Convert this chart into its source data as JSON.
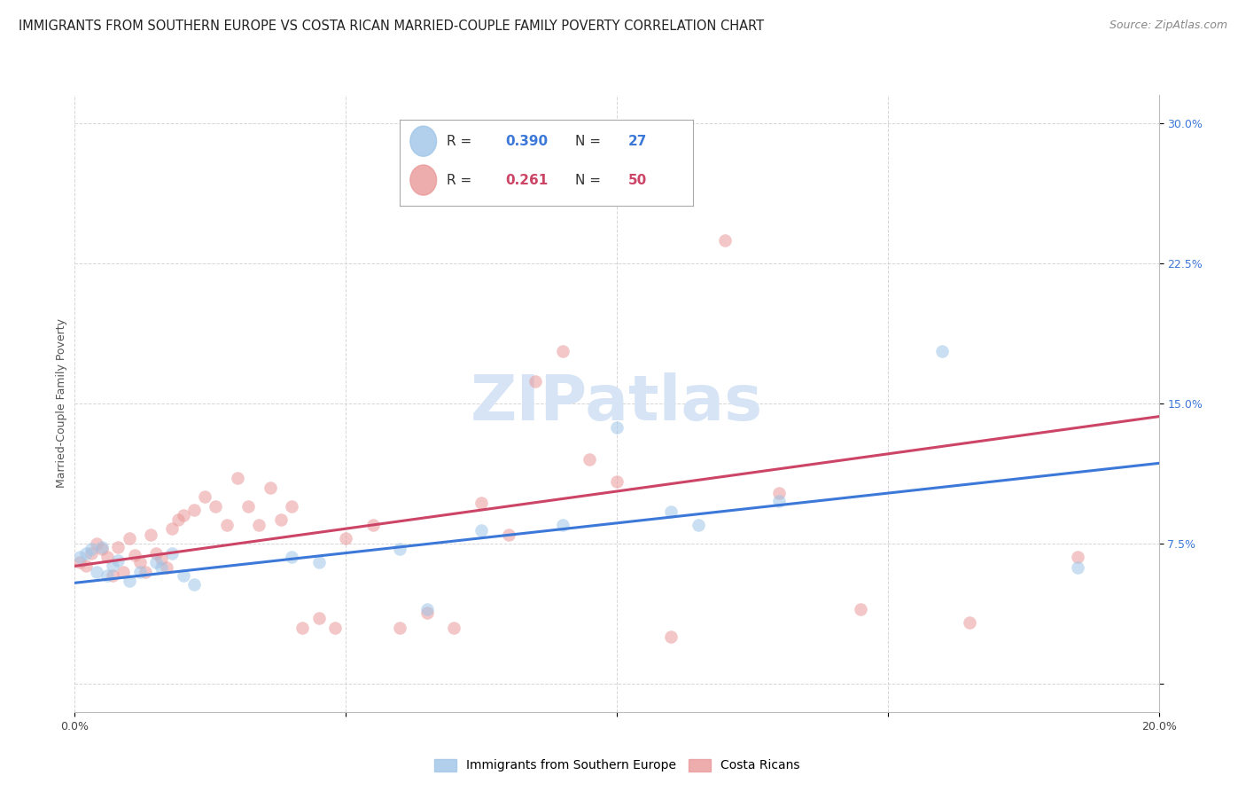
{
  "title": "IMMIGRANTS FROM SOUTHERN EUROPE VS COSTA RICAN MARRIED-COUPLE FAMILY POVERTY CORRELATION CHART",
  "source": "Source: ZipAtlas.com",
  "ylabel": "Married-Couple Family Poverty",
  "yticks": [
    0.0,
    0.075,
    0.15,
    0.225,
    0.3
  ],
  "ytick_labels": [
    "",
    "7.5%",
    "15.0%",
    "22.5%",
    "30.0%"
  ],
  "xlim": [
    0.0,
    0.2
  ],
  "ylim": [
    -0.015,
    0.315
  ],
  "watermark": "ZIPatlas",
  "legend_blue_R": "0.390",
  "legend_blue_N": "27",
  "legend_pink_R": "0.261",
  "legend_pink_N": "50",
  "legend_blue_label": "Immigrants from Southern Europe",
  "legend_pink_label": "Costa Ricans",
  "blue_scatter_x": [
    0.001,
    0.002,
    0.003,
    0.004,
    0.005,
    0.006,
    0.007,
    0.008,
    0.01,
    0.012,
    0.015,
    0.016,
    0.018,
    0.02,
    0.022,
    0.04,
    0.045,
    0.06,
    0.065,
    0.075,
    0.09,
    0.1,
    0.11,
    0.115,
    0.13,
    0.16,
    0.185
  ],
  "blue_scatter_y": [
    0.068,
    0.07,
    0.072,
    0.06,
    0.073,
    0.058,
    0.063,
    0.066,
    0.055,
    0.06,
    0.065,
    0.062,
    0.07,
    0.058,
    0.053,
    0.068,
    0.065,
    0.072,
    0.04,
    0.082,
    0.085,
    0.137,
    0.092,
    0.085,
    0.098,
    0.178,
    0.062
  ],
  "pink_scatter_x": [
    0.001,
    0.002,
    0.003,
    0.004,
    0.005,
    0.006,
    0.007,
    0.008,
    0.009,
    0.01,
    0.011,
    0.012,
    0.013,
    0.014,
    0.015,
    0.016,
    0.017,
    0.018,
    0.019,
    0.02,
    0.022,
    0.024,
    0.026,
    0.028,
    0.03,
    0.032,
    0.034,
    0.036,
    0.038,
    0.04,
    0.042,
    0.045,
    0.048,
    0.05,
    0.055,
    0.06,
    0.065,
    0.07,
    0.075,
    0.08,
    0.085,
    0.09,
    0.095,
    0.1,
    0.11,
    0.12,
    0.13,
    0.145,
    0.165,
    0.185
  ],
  "pink_scatter_y": [
    0.065,
    0.063,
    0.07,
    0.075,
    0.072,
    0.068,
    0.058,
    0.073,
    0.06,
    0.078,
    0.069,
    0.065,
    0.06,
    0.08,
    0.07,
    0.067,
    0.062,
    0.083,
    0.088,
    0.09,
    0.093,
    0.1,
    0.095,
    0.085,
    0.11,
    0.095,
    0.085,
    0.105,
    0.088,
    0.095,
    0.03,
    0.035,
    0.03,
    0.078,
    0.085,
    0.03,
    0.038,
    0.03,
    0.097,
    0.08,
    0.162,
    0.178,
    0.12,
    0.108,
    0.025,
    0.237,
    0.102,
    0.04,
    0.033,
    0.068
  ],
  "blue_line_x": [
    0.0,
    0.2
  ],
  "blue_line_y": [
    0.054,
    0.118
  ],
  "pink_line_x": [
    0.0,
    0.2
  ],
  "pink_line_y": [
    0.063,
    0.143
  ],
  "blue_color": "#9fc5e8",
  "pink_color": "#ea9999",
  "blue_line_color": "#3c78d8",
  "pink_line_color": "#cc4466",
  "grid_color": "#cccccc",
  "bg_color": "#ffffff",
  "title_fontsize": 10.5,
  "source_fontsize": 9,
  "axis_label_fontsize": 9,
  "tick_fontsize": 9,
  "watermark_fontsize": 52,
  "watermark_color": "#d6e4f5",
  "scatter_size": 110,
  "scatter_alpha": 0.55,
  "line_width": 2.2
}
